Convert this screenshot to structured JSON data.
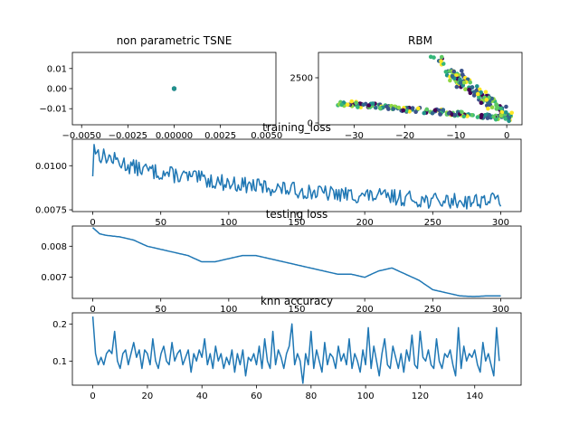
{
  "chart_data": [
    {
      "id": "tsne",
      "type": "scatter",
      "title": "non parametric TSNE",
      "xlim": [
        -0.0055,
        0.0055
      ],
      "ylim": [
        -0.018,
        0.018
      ],
      "xticks": [
        -0.005,
        -0.0025,
        0.0,
        0.0025,
        0.005
      ],
      "xtick_labels": [
        "−0.0050",
        "−0.0025",
        "0.00000",
        "0.0025",
        "0.0050"
      ],
      "yticks": [
        -0.01,
        0.0,
        0.01
      ],
      "ytick_labels": [
        "−0.01",
        "0.00",
        "0.01"
      ],
      "points": {
        "x": [
          0.0,
          0.0,
          0.0,
          0.0
        ],
        "y": [
          0.0,
          0.0,
          0.0,
          0.0
        ]
      }
    },
    {
      "id": "rbm",
      "type": "scatter",
      "title": "RBM",
      "xlim": [
        -37,
        3
      ],
      "ylim": [
        -100,
        3900
      ],
      "xticks": [
        -30,
        -20,
        -10,
        0
      ],
      "xtick_labels": [
        "−30",
        "−20",
        "−10",
        "0"
      ],
      "yticks": [
        0,
        2500
      ],
      "ytick_labels": [
        "0",
        "2500"
      ],
      "clusters": [
        {
          "x": [
            -33,
            1
          ],
          "y": [
            1100,
            250
          ],
          "n": 170
        },
        {
          "x": [
            -14,
            1
          ],
          "y": [
            3600,
            250
          ],
          "n": 90
        },
        {
          "x": [
            -11,
            1
          ],
          "y": [
            2600,
            300
          ],
          "n": 60
        }
      ]
    },
    {
      "id": "training",
      "type": "line",
      "title": "training_loss",
      "xlim": [
        -15,
        315
      ],
      "ylim": [
        0.0074,
        0.0115
      ],
      "xticks": [
        0,
        50,
        100,
        150,
        200,
        250,
        300
      ],
      "xtick_labels": [
        "0",
        "50",
        "100",
        "150",
        "200",
        "250",
        "300"
      ],
      "yticks": [
        0.0075,
        0.01
      ],
      "ytick_labels": [
        "0.0075",
        "0.0100"
      ],
      "series_points": 300,
      "anchors": {
        "x": [
          0,
          1,
          2,
          5,
          10,
          20,
          30,
          50,
          75,
          100,
          125,
          150,
          175,
          200,
          225,
          250,
          275,
          300
        ],
        "y": [
          0.0094,
          0.0112,
          0.0109,
          0.0106,
          0.0105,
          0.0102,
          0.0099,
          0.0096,
          0.0093,
          0.009,
          0.0088,
          0.0086,
          0.0084,
          0.0083,
          0.0082,
          0.008,
          0.008,
          0.0081
        ]
      }
    },
    {
      "id": "testing",
      "type": "line",
      "title": "testing loss",
      "xlim": [
        -15,
        315
      ],
      "ylim": [
        0.00632,
        0.00865
      ],
      "xticks": [
        0,
        50,
        100,
        150,
        200,
        250,
        300
      ],
      "xtick_labels": [
        "0",
        "50",
        "100",
        "150",
        "200",
        "250",
        "300"
      ],
      "yticks": [
        0.007,
        0.008
      ],
      "ytick_labels": [
        "0.007",
        "0.008"
      ],
      "anchors": {
        "x": [
          0,
          5,
          10,
          20,
          30,
          40,
          50,
          60,
          70,
          80,
          90,
          100,
          110,
          120,
          130,
          140,
          150,
          160,
          170,
          180,
          190,
          200,
          210,
          220,
          230,
          240,
          250,
          260,
          270,
          280,
          290,
          300
        ],
        "y": [
          0.0086,
          0.0084,
          0.00835,
          0.0083,
          0.0082,
          0.008,
          0.0079,
          0.0078,
          0.0077,
          0.0075,
          0.0075,
          0.0076,
          0.0077,
          0.0077,
          0.0076,
          0.0075,
          0.0074,
          0.0073,
          0.0072,
          0.0071,
          0.0071,
          0.007,
          0.0072,
          0.0073,
          0.0071,
          0.0069,
          0.0066,
          0.0065,
          0.0064,
          0.00638,
          0.0064,
          0.0064
        ]
      }
    },
    {
      "id": "knn",
      "type": "line",
      "title": "knn accuracy",
      "xlim": [
        -7.5,
        157
      ],
      "ylim": [
        0.035,
        0.23
      ],
      "xticks": [
        0,
        20,
        40,
        60,
        80,
        100,
        120,
        140
      ],
      "xtick_labels": [
        "0",
        "20",
        "40",
        "60",
        "80",
        "100",
        "120",
        "140"
      ],
      "yticks": [
        0.1,
        0.2
      ],
      "ytick_labels": [
        "0.1",
        "0.2"
      ],
      "x": [
        0,
        1,
        2,
        3,
        4,
        5,
        6,
        7,
        8,
        9,
        10,
        11,
        12,
        13,
        14,
        15,
        16,
        17,
        18,
        19,
        20,
        21,
        22,
        23,
        24,
        25,
        26,
        27,
        28,
        29,
        30,
        31,
        32,
        33,
        34,
        35,
        36,
        37,
        38,
        39,
        40,
        41,
        42,
        43,
        44,
        45,
        46,
        47,
        48,
        49,
        50,
        51,
        52,
        53,
        54,
        55,
        56,
        57,
        58,
        59,
        60,
        61,
        62,
        63,
        64,
        65,
        66,
        67,
        68,
        69,
        70,
        71,
        72,
        73,
        74,
        75,
        76,
        77,
        78,
        79,
        80,
        81,
        82,
        83,
        84,
        85,
        86,
        87,
        88,
        89,
        90,
        91,
        92,
        93,
        94,
        95,
        96,
        97,
        98,
        99,
        100,
        101,
        102,
        103,
        104,
        105,
        106,
        107,
        108,
        109,
        110,
        111,
        112,
        113,
        114,
        115,
        116,
        117,
        118,
        119,
        120,
        121,
        122,
        123,
        124,
        125,
        126,
        127,
        128,
        129,
        130,
        131,
        132,
        133,
        134,
        135,
        136,
        137,
        138,
        139,
        140,
        141,
        142,
        143,
        144,
        145,
        146,
        147,
        148,
        149
      ],
      "y": [
        0.22,
        0.12,
        0.09,
        0.11,
        0.09,
        0.12,
        0.13,
        0.12,
        0.18,
        0.1,
        0.08,
        0.12,
        0.13,
        0.09,
        0.12,
        0.15,
        0.11,
        0.13,
        0.08,
        0.13,
        0.12,
        0.09,
        0.16,
        0.1,
        0.08,
        0.12,
        0.14,
        0.1,
        0.09,
        0.15,
        0.1,
        0.12,
        0.13,
        0.09,
        0.11,
        0.13,
        0.07,
        0.12,
        0.1,
        0.13,
        0.11,
        0.16,
        0.09,
        0.12,
        0.08,
        0.14,
        0.1,
        0.12,
        0.08,
        0.11,
        0.09,
        0.13,
        0.07,
        0.12,
        0.09,
        0.13,
        0.06,
        0.11,
        0.1,
        0.12,
        0.09,
        0.14,
        0.08,
        0.16,
        0.1,
        0.08,
        0.18,
        0.09,
        0.13,
        0.11,
        0.08,
        0.12,
        0.14,
        0.2,
        0.09,
        0.12,
        0.1,
        0.04,
        0.12,
        0.09,
        0.18,
        0.08,
        0.13,
        0.1,
        0.07,
        0.15,
        0.09,
        0.12,
        0.11,
        0.08,
        0.14,
        0.1,
        0.12,
        0.09,
        0.16,
        0.08,
        0.12,
        0.1,
        0.07,
        0.13,
        0.09,
        0.19,
        0.08,
        0.14,
        0.1,
        0.06,
        0.12,
        0.16,
        0.09,
        0.08,
        0.14,
        0.11,
        0.08,
        0.12,
        0.07,
        0.13,
        0.1,
        0.17,
        0.09,
        0.08,
        0.18,
        0.11,
        0.1,
        0.13,
        0.09,
        0.08,
        0.16,
        0.1,
        0.08,
        0.12,
        0.11,
        0.13,
        0.09,
        0.06,
        0.19,
        0.08,
        0.14,
        0.1,
        0.12,
        0.11,
        0.13,
        0.09,
        0.07,
        0.15,
        0.1,
        0.12,
        0.09,
        0.06,
        0.19,
        0.1
      ]
    }
  ]
}
